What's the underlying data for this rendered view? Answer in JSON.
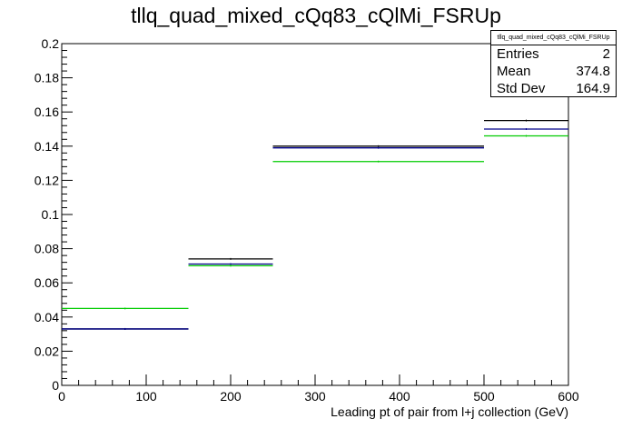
{
  "title": "tllq_quad_mixed_cQq83_cQlMi_FSRUp",
  "stats": {
    "name": "tllq_quad_mixed_cQq83_cQlMi_FSRUp",
    "rows": [
      {
        "label": "Entries",
        "value": "2"
      },
      {
        "label": "Mean",
        "value": "374.8"
      },
      {
        "label": "Std Dev",
        "value": "164.9"
      }
    ]
  },
  "chart_data": {
    "type": "bar",
    "title": "tllq_quad_mixed_cQq83_cQlMi_FSRUp",
    "xlabel": "Leading pt of pair from l+j collection (GeV)",
    "ylabel": "",
    "xlim": [
      0,
      600
    ],
    "ylim": [
      0,
      0.2
    ],
    "bin_edges": [
      0,
      150,
      250,
      500,
      600
    ],
    "x_ticks": [
      "0",
      "100",
      "200",
      "300",
      "400",
      "500",
      "600"
    ],
    "y_ticks": [
      "0",
      "0.02",
      "0.04",
      "0.06",
      "0.08",
      "0.1",
      "0.12",
      "0.14",
      "0.16",
      "0.18",
      "0.2"
    ],
    "series": [
      {
        "color": "#000000",
        "values": [
          0.033,
          0.074,
          0.14,
          0.155
        ]
      },
      {
        "color": "#00008b",
        "values": [
          0.033,
          0.071,
          0.139,
          0.15
        ]
      },
      {
        "color": "#00cc00",
        "values": [
          0.045,
          0.07,
          0.131,
          0.146
        ]
      }
    ],
    "grid": false,
    "legend": "top-right"
  }
}
